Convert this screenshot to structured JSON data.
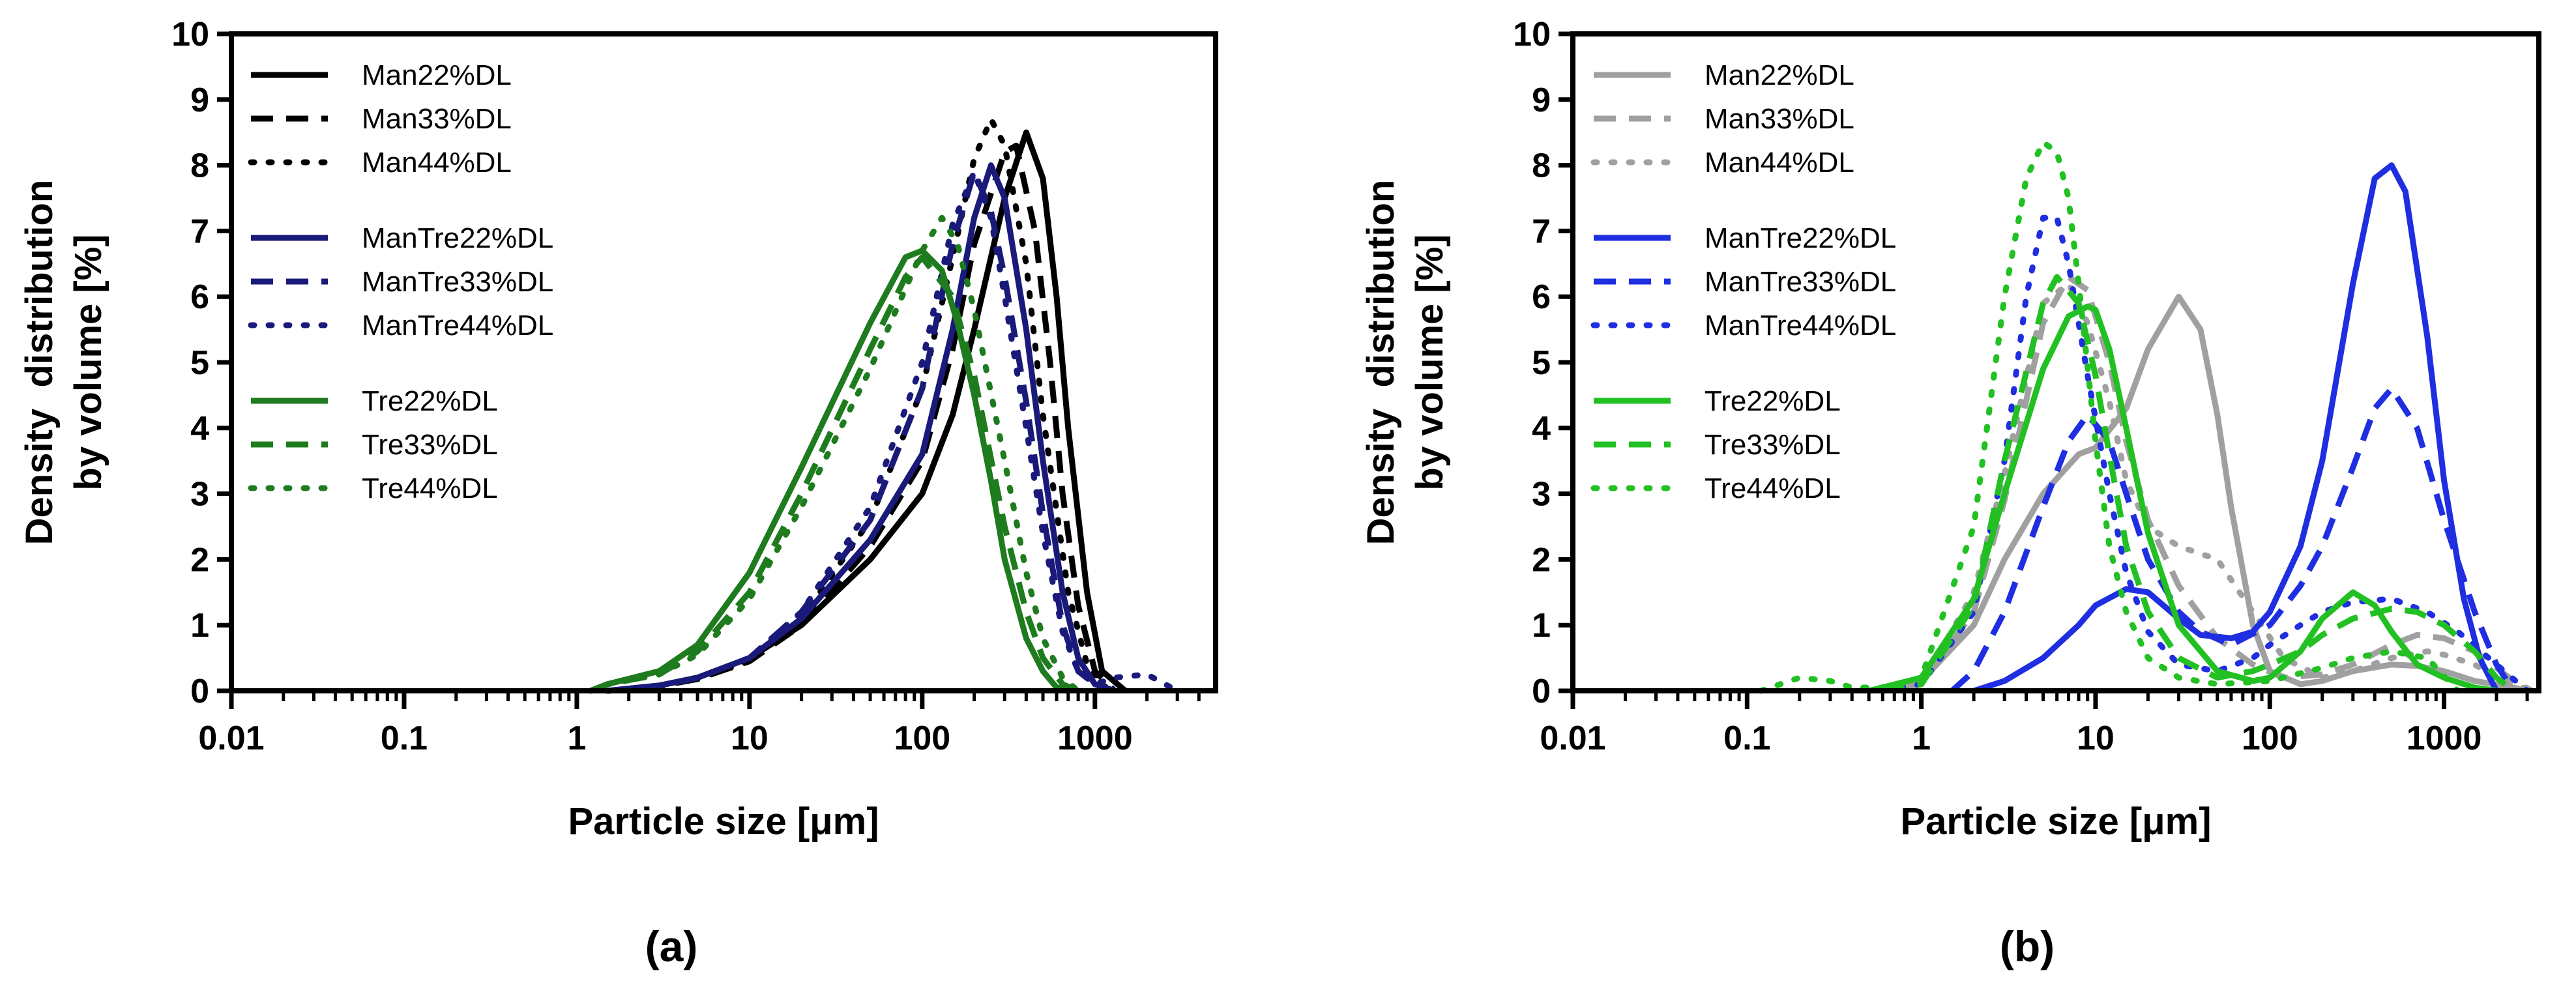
{
  "figure": {
    "panels": [
      "(a)",
      "(b)"
    ]
  },
  "chart_data": [
    {
      "type": "line",
      "panel": "(a)",
      "xscale": "log",
      "xlim": [
        0.01,
        5000
      ],
      "ylim": [
        0,
        10
      ],
      "xlabel": "Particle size [μm]",
      "ylabel": [
        "Density  distribution",
        "by volume [%]"
      ],
      "xticks": [
        0.01,
        0.1,
        1,
        10,
        100,
        1000
      ],
      "xtick_labels": [
        "0.01",
        "0.1",
        "1",
        "10",
        "100",
        "1000"
      ],
      "yticks": [
        0,
        1,
        2,
        3,
        4,
        5,
        6,
        7,
        8,
        9,
        10
      ],
      "ytick_labels": [
        "0",
        "1",
        "2",
        "3",
        "4",
        "5",
        "6",
        "7",
        "8",
        "9",
        "10"
      ],
      "legend_position": "top-left",
      "series": [
        {
          "name": "Man22%DL",
          "color": "#000000",
          "dash": "solid",
          "x": [
            1.5,
            3,
            5,
            10,
            20,
            50,
            100,
            150,
            200,
            300,
            400,
            500,
            600,
            700,
            900,
            1100,
            1500
          ],
          "y": [
            0,
            0.08,
            0.2,
            0.5,
            1.0,
            2.0,
            3.0,
            4.2,
            5.5,
            7.5,
            8.5,
            7.8,
            6.0,
            4.0,
            1.5,
            0.3,
            0
          ]
        },
        {
          "name": "Man33%DL",
          "color": "#000000",
          "dash": "dash",
          "x": [
            1.5,
            3,
            5,
            10,
            20,
            50,
            100,
            150,
            200,
            300,
            350,
            450,
            550,
            650,
            800,
            1000,
            1300
          ],
          "y": [
            0,
            0.07,
            0.18,
            0.45,
            1.0,
            2.2,
            3.5,
            5.2,
            6.8,
            8.2,
            8.3,
            7.0,
            5.0,
            3.0,
            1.3,
            0.3,
            0
          ]
        },
        {
          "name": "Man44%DL",
          "color": "#000000",
          "dash": "dot",
          "x": [
            1.5,
            3,
            5,
            10,
            20,
            50,
            100,
            150,
            200,
            250,
            300,
            400,
            500,
            700,
            900,
            1200
          ],
          "y": [
            0,
            0.07,
            0.18,
            0.45,
            1.1,
            2.6,
            4.6,
            6.6,
            8.1,
            8.7,
            8.3,
            6.5,
            4.2,
            1.5,
            0.4,
            0
          ]
        },
        {
          "name": "ManTre22%DL",
          "color": "#1a1a7a",
          "dash": "solid",
          "x": [
            1.5,
            3,
            5,
            10,
            20,
            50,
            100,
            150,
            200,
            250,
            300,
            400,
            500,
            650,
            800,
            1000,
            1300
          ],
          "y": [
            0,
            0.08,
            0.2,
            0.5,
            1.1,
            2.3,
            3.6,
            5.5,
            7.2,
            8.0,
            7.5,
            5.5,
            3.5,
            1.5,
            0.5,
            0.1,
            0
          ]
        },
        {
          "name": "ManTre33%DL",
          "color": "#1a1a7a",
          "dash": "dash",
          "x": [
            1.5,
            3,
            5,
            10,
            20,
            50,
            100,
            150,
            200,
            250,
            300,
            400,
            500,
            650,
            800,
            1000,
            1300
          ],
          "y": [
            0,
            0.07,
            0.2,
            0.5,
            1.2,
            2.6,
            4.6,
            6.8,
            7.9,
            7.3,
            6.3,
            4.4,
            2.7,
            1.0,
            0.3,
            0.1,
            0
          ]
        },
        {
          "name": "ManTre44%DL",
          "color": "#1a1a7a",
          "dash": "dot",
          "x": [
            1.5,
            3,
            5,
            10,
            20,
            50,
            100,
            150,
            200,
            250,
            300,
            400,
            500,
            650,
            800,
            1000,
            1300,
            2000,
            3000
          ],
          "y": [
            0,
            0.07,
            0.2,
            0.5,
            1.2,
            2.8,
            5.0,
            7.1,
            7.9,
            7.2,
            6.0,
            4.0,
            2.4,
            0.9,
            0.3,
            0.1,
            0.2,
            0.25,
            0
          ]
        },
        {
          "name": "Tre22%DL",
          "color": "#1e7b1e",
          "dash": "solid",
          "x": [
            1.2,
            1.5,
            3,
            5,
            10,
            20,
            50,
            80,
            100,
            130,
            160,
            200,
            250,
            300,
            400,
            500,
            600,
            800
          ],
          "y": [
            0,
            0.1,
            0.3,
            0.7,
            1.8,
            3.4,
            5.6,
            6.6,
            6.7,
            6.4,
            5.6,
            4.5,
            3.2,
            2.0,
            0.8,
            0.3,
            0.05,
            0
          ]
        },
        {
          "name": "Tre33%DL",
          "color": "#1e7b1e",
          "dash": "dash",
          "x": [
            1.2,
            1.5,
            3,
            5,
            10,
            20,
            50,
            80,
            100,
            150,
            200,
            300,
            400,
            500,
            650,
            800
          ],
          "y": [
            0,
            0.1,
            0.25,
            0.6,
            1.5,
            3.0,
            5.2,
            6.3,
            6.6,
            6.0,
            4.8,
            2.5,
            1.2,
            0.5,
            0.1,
            0
          ]
        },
        {
          "name": "Tre44%DL",
          "color": "#1e7b1e",
          "dash": "dot",
          "x": [
            1.2,
            1.5,
            3,
            5,
            10,
            20,
            50,
            100,
            130,
            160,
            200,
            300,
            400,
            500,
            650,
            800
          ],
          "y": [
            0,
            0.1,
            0.25,
            0.55,
            1.4,
            2.8,
            4.9,
            6.7,
            7.2,
            6.8,
            5.8,
            3.5,
            1.8,
            0.8,
            0.2,
            0
          ]
        }
      ]
    },
    {
      "type": "line",
      "panel": "(b)",
      "xscale": "log",
      "xlim": [
        0.01,
        3500
      ],
      "ylim": [
        0,
        10
      ],
      "xlabel": "Particle size [μm]",
      "ylabel": [
        "Density  distribution",
        "by volume [%]"
      ],
      "xticks": [
        0.01,
        0.1,
        1,
        10,
        100,
        1000
      ],
      "xtick_labels": [
        "0.01",
        "0.1",
        "1",
        "10",
        "100",
        "1000"
      ],
      "yticks": [
        0,
        1,
        2,
        3,
        4,
        5,
        6,
        7,
        8,
        9,
        10
      ],
      "ytick_labels": [
        "0",
        "1",
        "2",
        "3",
        "4",
        "5",
        "6",
        "7",
        "8",
        "9",
        "10"
      ],
      "legend_position": "top-left",
      "series": [
        {
          "name": "Man22%DL",
          "color": "#a0a0a0",
          "dash": "solid",
          "x": [
            0.5,
            1,
            2,
            3,
            5,
            8,
            10,
            15,
            20,
            30,
            40,
            50,
            60,
            80,
            100,
            150,
            200,
            300,
            500,
            700,
            1000,
            1500,
            2500,
            3000
          ],
          "y": [
            0,
            0.15,
            1.0,
            2.0,
            3.0,
            3.6,
            3.7,
            4.3,
            5.2,
            6.0,
            5.5,
            4.2,
            2.8,
            1.0,
            0.3,
            0.1,
            0.15,
            0.3,
            0.4,
            0.38,
            0.3,
            0.15,
            0.05,
            0
          ]
        },
        {
          "name": "Man33%DL",
          "color": "#a0a0a0",
          "dash": "dash",
          "x": [
            0.5,
            1,
            2,
            3,
            5,
            7,
            9,
            12,
            15,
            20,
            30,
            50,
            80,
            120,
            200,
            300,
            500,
            700,
            1000,
            1500,
            2000,
            2500,
            3200
          ],
          "y": [
            0,
            0.1,
            1.2,
            2.9,
            5.6,
            6.3,
            6.1,
            5.0,
            3.8,
            2.6,
            1.6,
            0.8,
            0.4,
            0.2,
            0.25,
            0.4,
            0.7,
            0.85,
            0.8,
            0.6,
            0.35,
            0.15,
            0
          ]
        },
        {
          "name": "Man44%DL",
          "color": "#a0a0a0",
          "dash": "dot",
          "x": [
            0.5,
            1,
            2,
            3,
            5,
            7,
            9,
            12,
            15,
            20,
            30,
            50,
            80,
            120,
            200,
            300,
            500,
            800,
            1000,
            1500,
            2000,
            3200
          ],
          "y": [
            0,
            0.1,
            1.5,
            3.3,
            5.9,
            6.2,
            5.6,
            4.4,
            3.2,
            2.5,
            2.2,
            2.0,
            1.2,
            0.5,
            0.2,
            0.3,
            0.5,
            0.6,
            0.55,
            0.4,
            0.2,
            0
          ]
        },
        {
          "name": "ManTre22%DL",
          "color": "#1f2ee0",
          "dash": "solid",
          "x": [
            2,
            3,
            5,
            8,
            10,
            15,
            20,
            30,
            40,
            60,
            80,
            100,
            150,
            200,
            300,
            400,
            500,
            600,
            800,
            1000,
            1300,
            1600,
            2000
          ],
          "y": [
            0,
            0.15,
            0.5,
            1.0,
            1.3,
            1.55,
            1.5,
            1.1,
            0.85,
            0.8,
            0.9,
            1.2,
            2.2,
            3.5,
            6.2,
            7.8,
            8.0,
            7.6,
            5.4,
            3.2,
            1.4,
            0.5,
            0
          ]
        },
        {
          "name": "ManTre33%DL",
          "color": "#1f2ee0",
          "dash": "dash",
          "x": [
            1.5,
            2,
            3,
            5,
            7,
            9,
            12,
            15,
            20,
            30,
            40,
            60,
            100,
            150,
            200,
            300,
            400,
            500,
            700,
            1000,
            1500,
            2000,
            2500
          ],
          "y": [
            0,
            0.3,
            1.2,
            2.8,
            3.8,
            4.2,
            3.8,
            3.0,
            2.0,
            1.2,
            0.9,
            0.7,
            1.0,
            1.6,
            2.2,
            3.4,
            4.3,
            4.6,
            4.0,
            2.6,
            1.2,
            0.4,
            0
          ]
        },
        {
          "name": "ManTre44%DL",
          "color": "#1f2ee0",
          "dash": "dot",
          "x": [
            0.6,
            1,
            2,
            3,
            4,
            5,
            6,
            7,
            9,
            12,
            15,
            20,
            30,
            50,
            80,
            100,
            150,
            200,
            300,
            500,
            800,
            1200,
            2000,
            3000
          ],
          "y": [
            0,
            0.1,
            1.2,
            3.5,
            6.0,
            7.2,
            7.2,
            6.5,
            4.8,
            3.0,
            1.8,
            0.9,
            0.4,
            0.3,
            0.5,
            0.7,
            1.0,
            1.2,
            1.35,
            1.4,
            1.2,
            0.9,
            0.4,
            0
          ]
        },
        {
          "name": "Tre22%DL",
          "color": "#22c022",
          "dash": "solid",
          "x": [
            0.5,
            1,
            2,
            3,
            5,
            7,
            9,
            10,
            12,
            15,
            20,
            30,
            50,
            80,
            100,
            150,
            200,
            300,
            400,
            500,
            700,
            1000,
            1500,
            2000
          ],
          "y": [
            0,
            0.2,
            1.4,
            3.0,
            4.9,
            5.7,
            5.85,
            5.8,
            5.2,
            4.0,
            2.4,
            1.0,
            0.3,
            0.15,
            0.2,
            0.6,
            1.1,
            1.5,
            1.3,
            0.9,
            0.4,
            0.2,
            0.05,
            0
          ]
        },
        {
          "name": "Tre33%DL",
          "color": "#22c022",
          "dash": "dash",
          "x": [
            0.6,
            1,
            2,
            3,
            5,
            6,
            8,
            10,
            12,
            15,
            20,
            30,
            50,
            80,
            100,
            150,
            200,
            300,
            500,
            700,
            1000,
            1500,
            2000,
            2500
          ],
          "y": [
            0,
            0.1,
            1.3,
            3.5,
            5.9,
            6.3,
            5.9,
            4.8,
            3.6,
            2.2,
            1.2,
            0.5,
            0.2,
            0.3,
            0.4,
            0.6,
            0.85,
            1.1,
            1.25,
            1.2,
            1.0,
            0.6,
            0.2,
            0
          ]
        },
        {
          "name": "Tre44%DL",
          "color": "#22c022",
          "dash": "dot",
          "x": [
            0.12,
            0.2,
            0.3,
            0.4,
            0.6,
            1,
            2,
            3,
            4,
            5,
            6,
            7,
            8,
            10,
            12,
            15,
            20,
            30,
            50,
            100,
            200,
            300,
            500,
            800,
            1200
          ],
          "y": [
            0,
            0.2,
            0.15,
            0.05,
            0.05,
            0.2,
            2.5,
            6.0,
            7.8,
            8.35,
            8.2,
            7.5,
            6.2,
            3.8,
            2.2,
            1.2,
            0.5,
            0.2,
            0.1,
            0.15,
            0.35,
            0.5,
            0.6,
            0.5,
            0
          ]
        }
      ]
    }
  ]
}
